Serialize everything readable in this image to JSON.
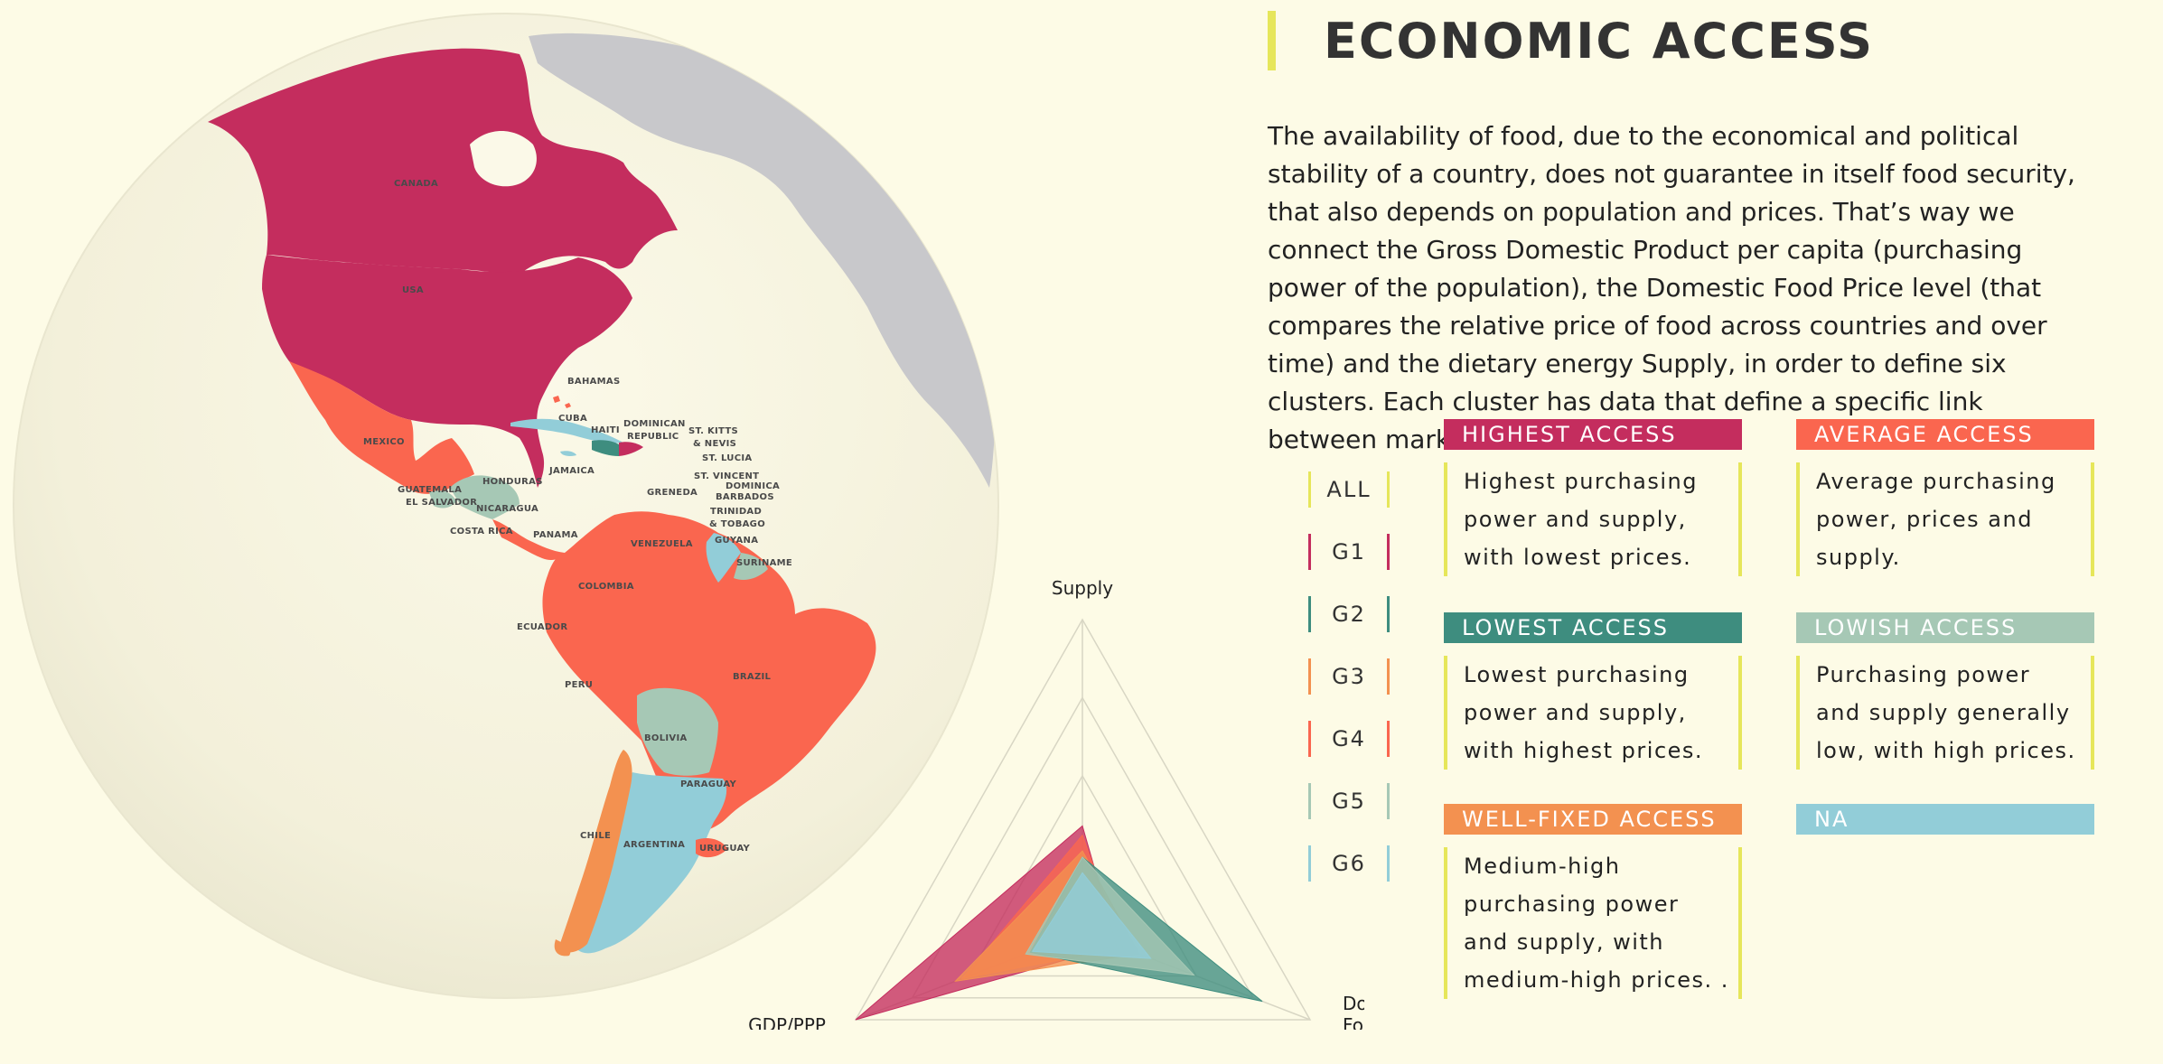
{
  "title": "ECONOMIC ACCESS",
  "intro": "The availability of food, due to the economical and political stability of a country, does not guarantee in itself food security, that also depends on population and prices. That’s way we connect the Gross Domestic Product per capita (purchasing power of the population), the Domestic Food Price level (that compares the relative price of food across countries and over time) and the dietary energy Supply, in order to define six clusters. Each cluster has data that define a specific link between market and individual.",
  "colors": {
    "background": "#fdfbe6",
    "g1": "#c42d5e",
    "g2": "#3e8d7f",
    "g3": "#f39150",
    "g4": "#fa664f",
    "g5": "#a6c8b5",
    "g6": "#92cdd8",
    "na": "#92cdd8",
    "accent": "#e6e65a",
    "other_land": "#c8c8cb"
  },
  "clusters": [
    {
      "label": "ALL",
      "color": "#e6e65a"
    },
    {
      "label": "G1",
      "color": "#c42d5e"
    },
    {
      "label": "G2",
      "color": "#3e8d7f"
    },
    {
      "label": "G3",
      "color": "#f39150"
    },
    {
      "label": "G4",
      "color": "#fa664f"
    },
    {
      "label": "G5",
      "color": "#a6c8b5"
    },
    {
      "label": "G6",
      "color": "#92cdd8"
    }
  ],
  "cards": {
    "highest": {
      "title": "HIGHEST ACCESS",
      "desc": "Highest purchasing power and supply, with lowest prices."
    },
    "average": {
      "title": "AVERAGE ACCESS",
      "desc": "Average purchasing power, prices and supply."
    },
    "lowest": {
      "title": "LOWEST ACCESS",
      "desc": "Lowest purchasing power and supply, with highest prices."
    },
    "lowish": {
      "title": "LOWISH ACCESS",
      "desc": "Purchasing power and supply generally low, with high prices."
    },
    "wellfixed": {
      "title": "WELL-FIXED ACCESS",
      "desc": "Medium-high purchasing power and supply, with medium-high prices. ."
    },
    "na": {
      "title": "NA"
    }
  },
  "map_labels": {
    "canada": "CANADA",
    "usa": "USA",
    "mexico": "MEXICO",
    "bahamas": "BAHAMAS",
    "cuba": "CUBA",
    "haiti": "HAITI",
    "dominican1": "DOMINICAN",
    "dominican2": "REPUBLIC",
    "stkitts1": "ST. KITTS",
    "stkitts2": "& NEVIS",
    "stlucia": "ST. LUCIA",
    "stvincent": "ST. VINCENT",
    "dominica": "DOMINICA",
    "barbados": "BARBADOS",
    "jamaica": "JAMAICA",
    "honduras": "HONDURAS",
    "guatemala": "GUATEMALA",
    "elsalvador": "EL SALVADOR",
    "nicaragua": "NICARAGUA",
    "grenada": "GRENEDA",
    "trinidad1": "TRINIDAD",
    "trinidad2": "& TOBAGO",
    "costarica": "COSTA RICA",
    "panama": "PANAMA",
    "venezuela": "VENEZUELA",
    "guyana": "GUYANA",
    "suriname": "SURINAME",
    "colombia": "COLOMBIA",
    "ecuador": "ECUADOR",
    "brazil": "BRAZIL",
    "peru": "PERU",
    "bolivia": "BOLIVIA",
    "paraguay": "PARAGUAY",
    "chile": "CHILE",
    "argentina": "ARGENTINA",
    "uruguay": "URUGUAY"
  },
  "chart_data": {
    "type": "radar",
    "axes": [
      "Supply",
      "GDP/PPP",
      "Domestic Food Price"
    ],
    "axis_label_lines": {
      "Supply": [
        "Supply"
      ],
      "GDP/PPP": [
        "GDP/PPP"
      ],
      "Domestic Food Price": [
        "Domestic",
        "Food Price"
      ]
    },
    "range": [
      0,
      1
    ],
    "rings": 4,
    "series": [
      {
        "color": "#c42d5e",
        "values": [
          0.34,
          1.0,
          0.15
        ]
      },
      {
        "color": "#fa664f",
        "values": [
          0.31,
          0.53,
          0.18
        ]
      },
      {
        "color": "#f39150",
        "values": [
          0.26,
          0.56,
          0.25
        ]
      },
      {
        "color": "#3e8d7f",
        "values": [
          0.24,
          0.23,
          0.79
        ]
      },
      {
        "color": "#a6c8b5",
        "values": [
          0.24,
          0.25,
          0.49
        ]
      },
      {
        "color": "#92cdd8",
        "values": [
          0.19,
          0.22,
          0.3
        ]
      }
    ]
  }
}
